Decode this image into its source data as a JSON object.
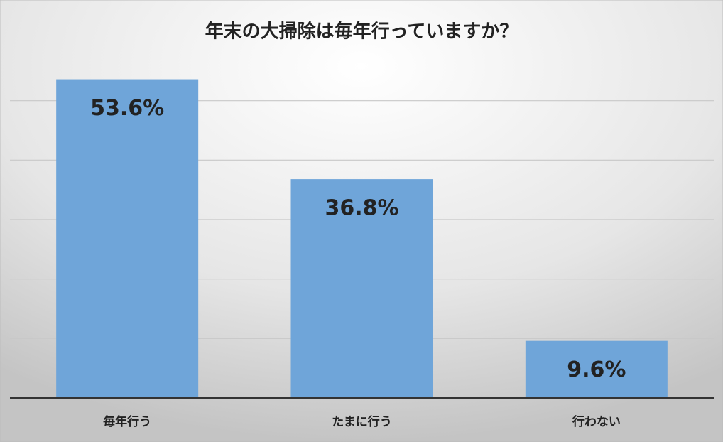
{
  "chart_data": {
    "type": "bar",
    "title": "年末の大掃除は毎年行っていますか？",
    "categories": [
      "毎年行う",
      "たまに行う",
      "行わない"
    ],
    "values": [
      53.6,
      36.8,
      9.6
    ],
    "value_labels": [
      "53.6%",
      "36.8%",
      "9.6%"
    ],
    "color": "#6fa5d9",
    "ylim": [
      0,
      60
    ],
    "yticks": [
      0,
      10,
      20,
      30,
      40,
      50
    ],
    "grid": true
  }
}
